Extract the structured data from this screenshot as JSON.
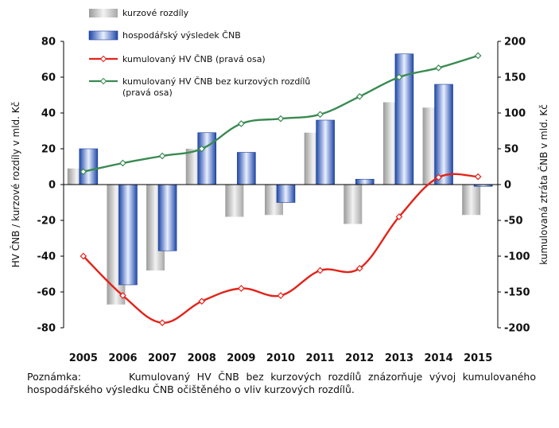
{
  "chart_data": {
    "type": "bar+line",
    "categories": [
      "2005",
      "2006",
      "2007",
      "2008",
      "2009",
      "2010",
      "2011",
      "2012",
      "2013",
      "2014",
      "2015"
    ],
    "left_axis": {
      "label": "HV ČNB / kurzové rozdíly v mld. Kč",
      "ylim": [
        -80,
        80
      ],
      "ticks": [
        80,
        60,
        40,
        20,
        0,
        -20,
        -40,
        -60,
        -80
      ]
    },
    "right_axis": {
      "label": "kumulovaná ztráta ČNB v mld. Kč",
      "ylim": [
        -200,
        200
      ],
      "ticks": [
        200,
        150,
        100,
        50,
        0,
        -50,
        -100,
        -150,
        -200
      ]
    },
    "series": [
      {
        "name": "kurzové rozdíly",
        "kind": "bar",
        "axis": "left",
        "color": "#c8c8c8",
        "values": [
          9,
          -67,
          -48,
          20,
          -18,
          -17,
          29,
          -22,
          46,
          43,
          -17
        ]
      },
      {
        "name": "hospodářský výsledek ČNB",
        "kind": "bar",
        "axis": "left",
        "color": "#2c5fc0",
        "values": [
          20,
          -56,
          -37,
          29,
          18,
          -10,
          36,
          3,
          73,
          56,
          -1
        ]
      },
      {
        "name": "kumulovaný HV ČNB (pravá osa)",
        "kind": "line",
        "axis": "right",
        "color": "#e2231a",
        "values": [
          -100,
          -155,
          -193,
          -163,
          -145,
          -155,
          -120,
          -117,
          -45,
          10,
          11
        ]
      },
      {
        "name": "kumulovaný HV ČNB bez kurzových rozdílů (pravá osa)",
        "kind": "line",
        "axis": "right",
        "color": "#3a8a52",
        "values": [
          18,
          30,
          40,
          50,
          85,
          92,
          98,
          123,
          150,
          163,
          180
        ]
      }
    ],
    "legend": {
      "placement": "top-left",
      "items": [
        {
          "lines": [
            "kurzové rozdíly"
          ]
        },
        {
          "lines": [
            "hospodářský výsledek ČNB"
          ]
        },
        {
          "lines": [
            "kumulovaný HV ČNB (pravá osa)"
          ]
        },
        {
          "lines": [
            "kumulovaný HV ČNB bez kurzových rozdílů",
            "(pravá osa)"
          ]
        }
      ]
    },
    "grid": false
  },
  "note": {
    "label": "Poznámka:",
    "text": "Kumulovaný HV ČNB bez kurzových rozdílů znázorňuje vývoj kumulovaného hospodářského výsledku ČNB očištěného o vliv kurzových rozdílů."
  }
}
